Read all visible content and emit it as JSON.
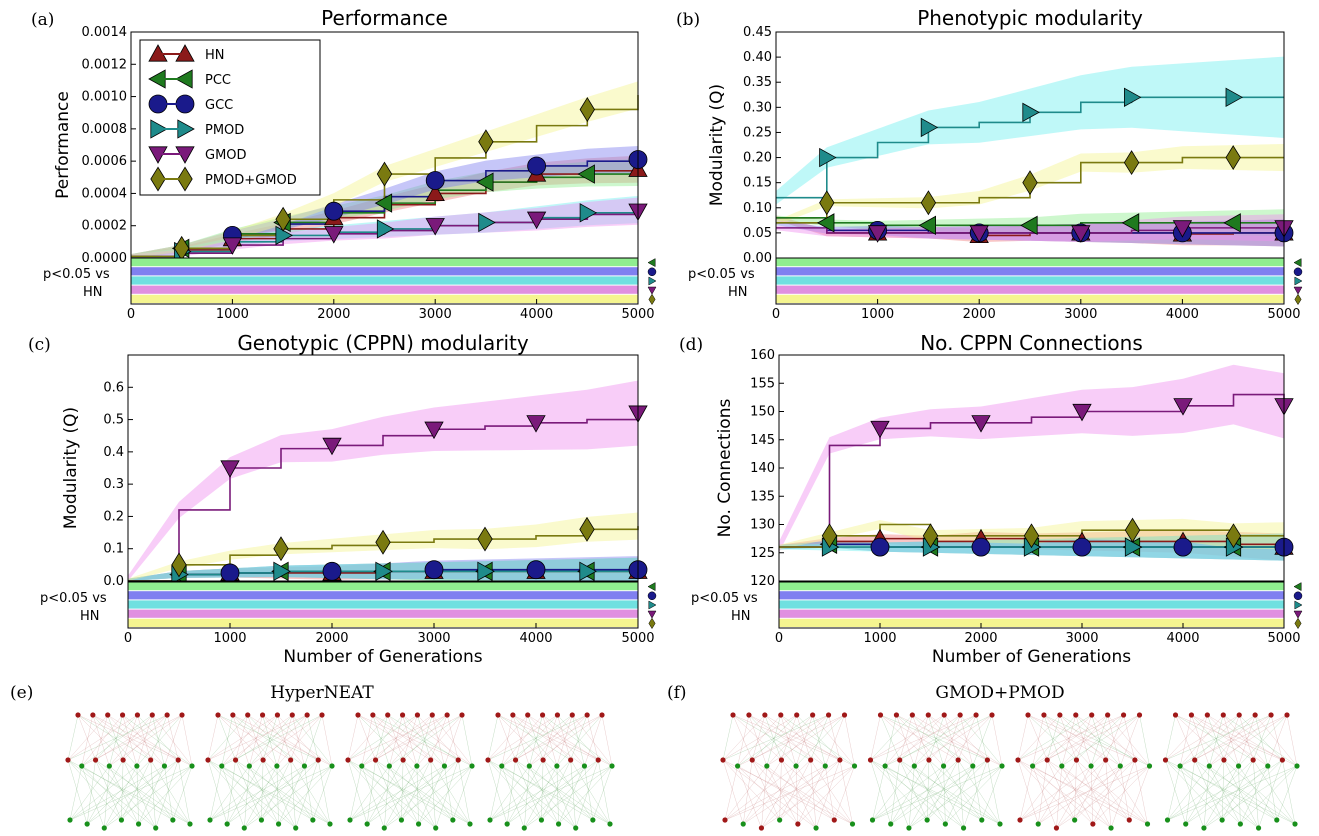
{
  "colors": {
    "HN": "#8b1a1a",
    "PCC": "#1f7a1f",
    "GCC": "#1a1a8b",
    "PMOD": "#1f8b8b",
    "GMOD": "#7a1a7a",
    "PMOD+GMOD": "#7a7a10",
    "band_HN": "#f08080",
    "band_PCC": "#90ee90",
    "band_GCC": "#8080f0",
    "band_PMOD": "#70f0f0",
    "band_GMOD": "#f090f0",
    "band_PMODGMOD": "#f5f590",
    "sig_PCC": "#90ee90",
    "sig_GCC": "#8080f0",
    "sig_PMOD": "#70e0e0",
    "sig_GMOD": "#e090e0",
    "sig_PMODGMOD": "#f5f590"
  },
  "legend": [
    "HN",
    "PCC",
    "GCC",
    "PMOD",
    "GMOD",
    "PMOD+GMOD"
  ],
  "sig_label_line1": "p<0.05 vs",
  "sig_label_line2": "HN",
  "x_ticks": [
    "0",
    "1000",
    "2000",
    "3000",
    "4000",
    "5000"
  ],
  "xlabel": "Number of Generations",
  "chart_data": [
    {
      "panel": "(a)",
      "type": "line",
      "title": "Performance",
      "ylabel": "Performance",
      "xlim": [
        0,
        5000
      ],
      "ylim": [
        0,
        0.0014
      ],
      "yticks": [
        "0.0000",
        "0.0002",
        "0.0004",
        "0.0006",
        "0.0008",
        "0.0010",
        "0.0012",
        "0.0014"
      ],
      "x": [
        0,
        500,
        1000,
        1500,
        2000,
        2500,
        3000,
        3500,
        4000,
        4500,
        5000
      ],
      "series": [
        {
          "name": "HN",
          "values": [
            1e-05,
            5e-05,
            0.00012,
            0.00018,
            0.00025,
            0.00033,
            0.0004,
            0.00047,
            0.00052,
            0.00054,
            0.00055
          ]
        },
        {
          "name": "PCC",
          "values": [
            1e-05,
            6e-05,
            0.00015,
            0.00022,
            0.00028,
            0.00034,
            0.00042,
            0.00047,
            0.0005,
            0.00052,
            0.00053
          ]
        },
        {
          "name": "GCC",
          "values": [
            1e-05,
            6e-05,
            0.00014,
            0.00021,
            0.00029,
            0.00038,
            0.00048,
            0.00054,
            0.00057,
            0.0006,
            0.00061
          ]
        },
        {
          "name": "PMOD",
          "values": [
            1e-05,
            4e-05,
            0.0001,
            0.00014,
            0.00016,
            0.00018,
            0.0002,
            0.00022,
            0.00025,
            0.00028,
            0.0003
          ]
        },
        {
          "name": "GMOD",
          "values": [
            1e-05,
            3e-05,
            8e-05,
            0.00012,
            0.00015,
            0.00017,
            0.0002,
            0.00022,
            0.00024,
            0.00027,
            0.00029
          ]
        },
        {
          "name": "PMOD+GMOD",
          "values": [
            1e-05,
            6e-05,
            0.00014,
            0.00024,
            0.00036,
            0.00052,
            0.00062,
            0.00072,
            0.00082,
            0.00092,
            0.00101
          ]
        }
      ]
    },
    {
      "panel": "(b)",
      "type": "line",
      "title": "Phenotypic modularity",
      "ylabel": "Modularity (Q)",
      "xlim": [
        0,
        5000
      ],
      "ylim": [
        0,
        0.45
      ],
      "yticks": [
        "0.00",
        "0.05",
        "0.10",
        "0.15",
        "0.20",
        "0.25",
        "0.30",
        "0.35",
        "0.40",
        "0.45"
      ],
      "x": [
        0,
        500,
        1000,
        1500,
        2000,
        2500,
        3000,
        3500,
        4000,
        4500,
        5000
      ],
      "series": [
        {
          "name": "HN",
          "values": [
            0.08,
            0.05,
            0.05,
            0.05,
            0.045,
            0.05,
            0.05,
            0.05,
            0.048,
            0.05,
            0.05
          ]
        },
        {
          "name": "PCC",
          "values": [
            0.08,
            0.07,
            0.065,
            0.065,
            0.065,
            0.065,
            0.07,
            0.07,
            0.07,
            0.07,
            0.07
          ]
        },
        {
          "name": "GCC",
          "values": [
            0.07,
            0.055,
            0.055,
            0.05,
            0.05,
            0.05,
            0.05,
            0.05,
            0.05,
            0.05,
            0.05
          ]
        },
        {
          "name": "PMOD",
          "values": [
            0.12,
            0.2,
            0.23,
            0.26,
            0.27,
            0.29,
            0.31,
            0.32,
            0.32,
            0.32,
            0.32
          ]
        },
        {
          "name": "GMOD",
          "values": [
            0.06,
            0.05,
            0.05,
            0.05,
            0.05,
            0.05,
            0.05,
            0.055,
            0.06,
            0.06,
            0.06
          ]
        },
        {
          "name": "PMOD+GMOD",
          "values": [
            0.07,
            0.11,
            0.11,
            0.11,
            0.12,
            0.15,
            0.19,
            0.19,
            0.2,
            0.2,
            0.2
          ]
        }
      ]
    },
    {
      "panel": "(c)",
      "type": "line",
      "title": "Genotypic (CPPN) modularity",
      "ylabel": "Modularity (Q)",
      "xlim": [
        0,
        5000
      ],
      "ylim": [
        0,
        0.7
      ],
      "yticks": [
        "0.0",
        "0.1",
        "0.2",
        "0.3",
        "0.4",
        "0.5",
        "0.6"
      ],
      "x": [
        0,
        500,
        1000,
        1500,
        2000,
        2500,
        3000,
        3500,
        4000,
        4500,
        5000
      ],
      "series": [
        {
          "name": "HN",
          "values": [
            0.0,
            0.02,
            0.025,
            0.025,
            0.025,
            0.03,
            0.03,
            0.03,
            0.03,
            0.03,
            0.03
          ]
        },
        {
          "name": "PCC",
          "values": [
            0.0,
            0.02,
            0.025,
            0.03,
            0.03,
            0.03,
            0.03,
            0.03,
            0.03,
            0.03,
            0.03
          ]
        },
        {
          "name": "GCC",
          "values": [
            0.0,
            0.02,
            0.025,
            0.03,
            0.03,
            0.03,
            0.035,
            0.035,
            0.035,
            0.035,
            0.035
          ]
        },
        {
          "name": "PMOD",
          "values": [
            0.0,
            0.02,
            0.025,
            0.03,
            0.03,
            0.03,
            0.03,
            0.03,
            0.03,
            0.03,
            0.03
          ]
        },
        {
          "name": "GMOD",
          "values": [
            0.0,
            0.22,
            0.35,
            0.41,
            0.42,
            0.45,
            0.47,
            0.48,
            0.49,
            0.5,
            0.52
          ]
        },
        {
          "name": "PMOD+GMOD",
          "values": [
            0.0,
            0.05,
            0.08,
            0.1,
            0.11,
            0.12,
            0.13,
            0.13,
            0.14,
            0.16,
            0.17
          ]
        }
      ]
    },
    {
      "panel": "(d)",
      "type": "line",
      "title": "No. CPPN Connections",
      "ylabel": "No. Connections",
      "xlim": [
        0,
        5000
      ],
      "ylim": [
        120,
        160
      ],
      "yticks": [
        "120",
        "125",
        "130",
        "135",
        "140",
        "145",
        "150",
        "155",
        "160"
      ],
      "x": [
        0,
        500,
        1000,
        1500,
        2000,
        2500,
        3000,
        3500,
        4000,
        4500,
        5000
      ],
      "series": [
        {
          "name": "HN",
          "values": [
            126,
            127,
            127.5,
            127,
            127.5,
            127,
            127,
            127,
            127,
            126.5,
            126
          ]
        },
        {
          "name": "PCC",
          "values": [
            126,
            126.5,
            126,
            126,
            126,
            126,
            126,
            126,
            126,
            126,
            126
          ]
        },
        {
          "name": "GCC",
          "values": [
            126,
            126.5,
            126,
            126,
            126,
            126,
            126,
            126,
            126,
            126,
            126
          ]
        },
        {
          "name": "PMOD",
          "values": [
            126,
            126,
            126,
            126,
            126,
            126,
            126,
            126,
            126,
            126,
            126
          ]
        },
        {
          "name": "GMOD",
          "values": [
            126,
            144,
            147,
            148,
            148,
            149,
            150,
            150,
            151,
            153,
            151
          ]
        },
        {
          "name": "PMOD+GMOD",
          "values": [
            126,
            128,
            130,
            128,
            128,
            128,
            129,
            129,
            129,
            128,
            128
          ]
        }
      ]
    }
  ],
  "networks": [
    {
      "panel": "(e)",
      "title": "HyperNEAT"
    },
    {
      "panel": "(f)",
      "title": "GMOD+PMOD"
    }
  ]
}
